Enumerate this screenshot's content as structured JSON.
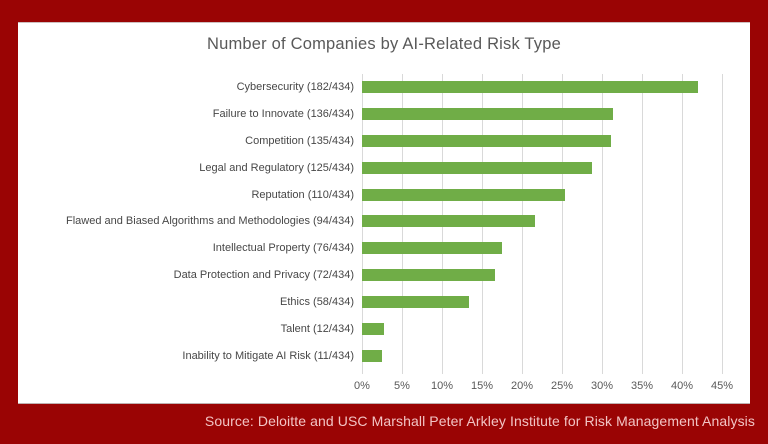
{
  "frame": {
    "background_color": "#9A0404"
  },
  "chart_data": {
    "type": "bar",
    "orientation": "horizontal",
    "title": "Number of Companies by AI-Related Risk Type",
    "categories": [
      "Cybersecurity (182/434)",
      "Failure to Innovate (136/434)",
      "Competition (135/434)",
      "Legal and Regulatory (125/434)",
      "Reputation (110/434)",
      "Flawed and Biased Algorithms and Methodologies (94/434)",
      "Intellectual Property (76/434)",
      "Data Protection and Privacy (72/434)",
      "Ethics (58/434)",
      "Talent (12/434)",
      "Inability to Mitigate AI Risk (11/434)"
    ],
    "counts": [
      182,
      136,
      135,
      125,
      110,
      94,
      76,
      72,
      58,
      12,
      11
    ],
    "total": 434,
    "values_pct": [
      41.94,
      31.34,
      31.11,
      28.8,
      25.35,
      21.66,
      17.51,
      16.59,
      13.36,
      2.76,
      2.53
    ],
    "xlabel": "",
    "ylabel": "",
    "xlim": [
      0,
      45
    ],
    "x_tick_labels": [
      "0%",
      "5%",
      "10%",
      "15%",
      "20%",
      "25%",
      "30%",
      "35%",
      "40%",
      "45%"
    ],
    "x_tick_values": [
      0,
      5,
      10,
      15,
      20,
      25,
      30,
      35,
      40,
      45
    ],
    "grid": true,
    "legend": "none",
    "bar_color": "#70AD47",
    "gridline_color": "#D9D9D9",
    "title_color": "#595959",
    "category_label_color": "#474747",
    "tick_label_color": "#595959"
  },
  "source": {
    "text": "Source: Deloitte and USC Marshall Peter Arkley Institute for Risk Management Analysis",
    "text_color": "#F2C4C4"
  }
}
